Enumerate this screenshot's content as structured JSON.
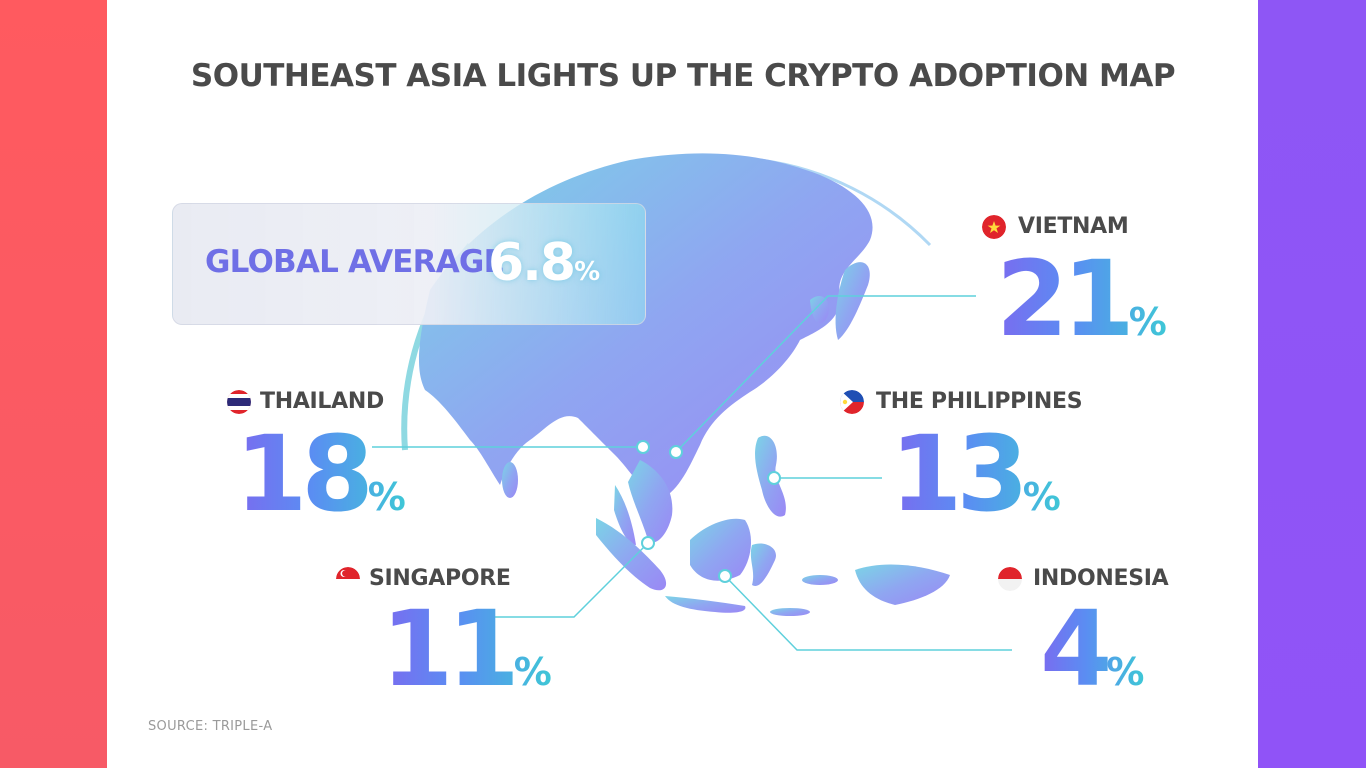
{
  "title": "SOUTHEAST ASIA LIGHTS UP THE CRYPTO ADOPTION MAP",
  "source": "SOURCE: TRIPLE-A",
  "global": {
    "label": "GLOBAL AVERAGE",
    "value": "6.8",
    "unit": "%"
  },
  "colors": {
    "left_bar": "#ff5a5f",
    "right_bar": "#8f55f6",
    "number_gradient": [
      "#7a6bf0",
      "#3ec7d6"
    ],
    "map": [
      "#6fd3df",
      "#9a8cf3"
    ]
  },
  "chart_data": {
    "type": "map",
    "title": "SOUTHEAST ASIA LIGHTS UP THE CRYPTO ADOPTION MAP",
    "unit": "%",
    "reference": {
      "name": "GLOBAL AVERAGE",
      "value": 6.8
    },
    "categories": [
      "VIETNAM",
      "THAILAND",
      "THE PHILIPPINES",
      "SINGAPORE",
      "INDONESIA"
    ],
    "values": [
      21,
      18,
      13,
      11,
      4
    ],
    "display": [
      "21",
      "18",
      "13",
      "11",
      "4"
    ],
    "flags": [
      "vietnam-flag-icon",
      "thailand-flag-icon",
      "philippines-flag-icon",
      "singapore-flag-icon",
      "indonesia-flag-icon"
    ]
  }
}
